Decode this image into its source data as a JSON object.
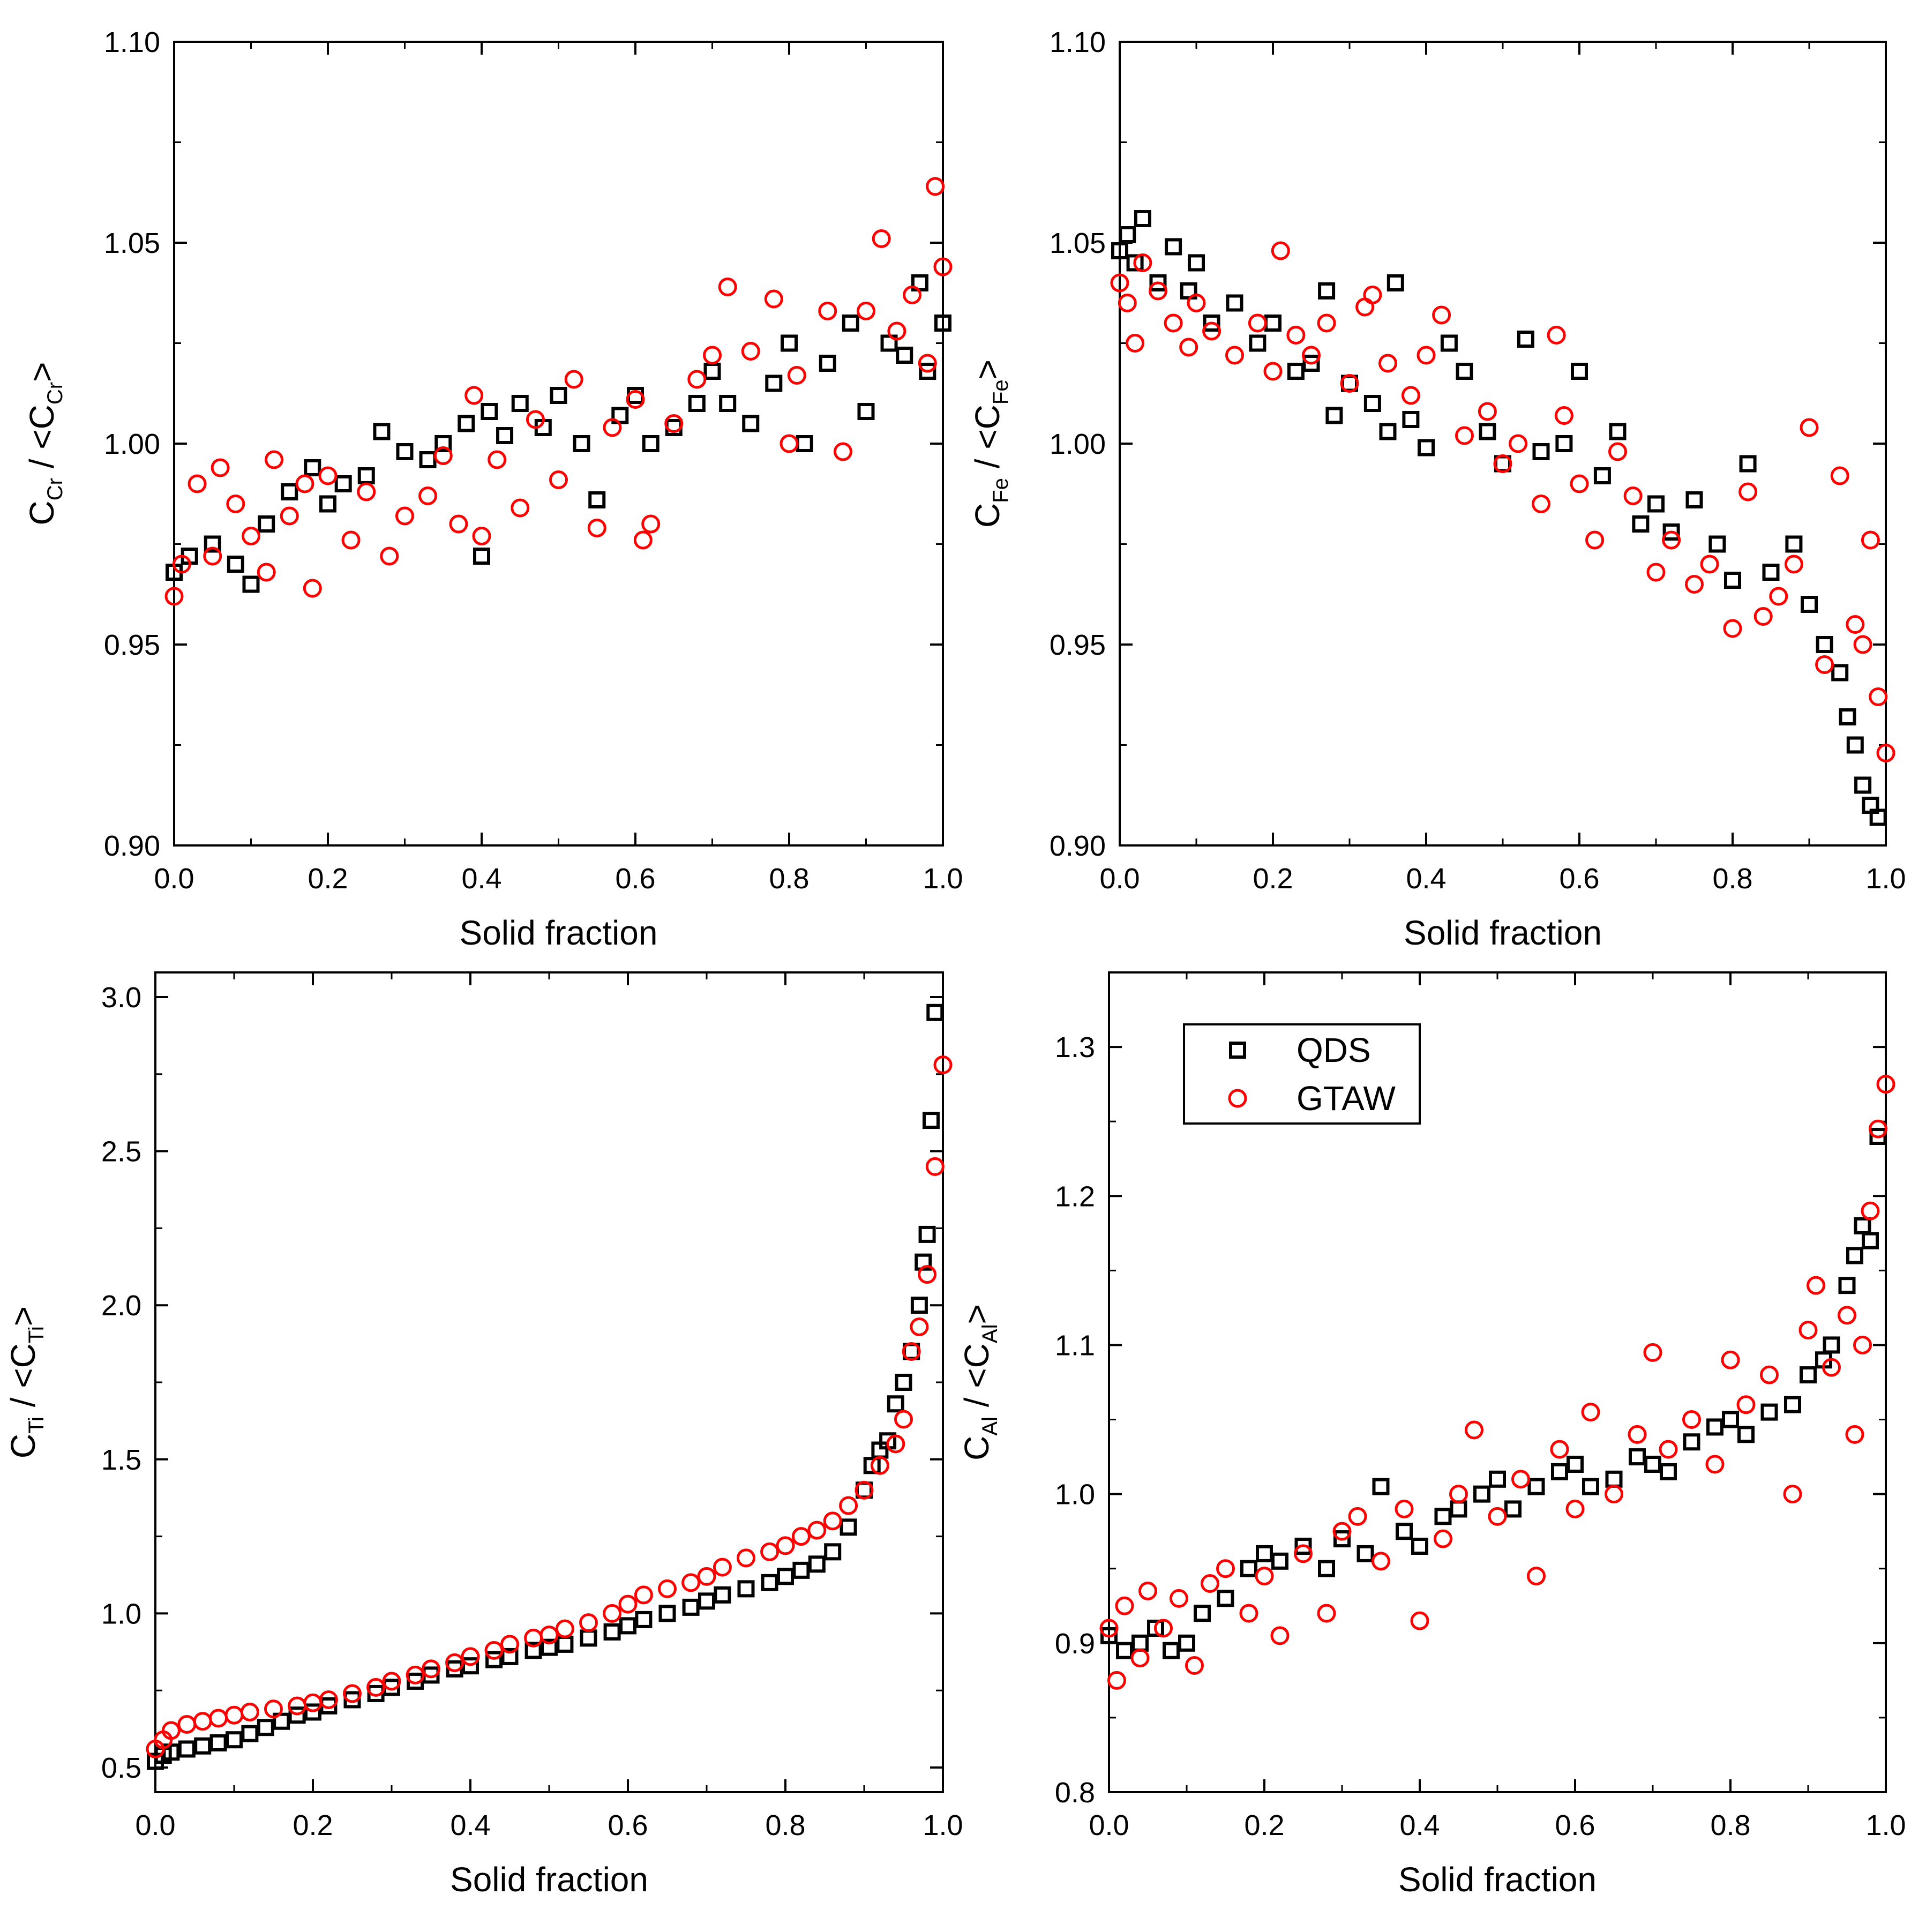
{
  "figure": {
    "panel_count": 4,
    "colors": {
      "qds": "#000000",
      "gtaw": "#ff0000",
      "axis": "#000000",
      "background": "#ffffff"
    }
  },
  "chart_data": [
    {
      "type": "scatter",
      "id": "cr",
      "xlabel": "Solid fraction",
      "ylabel": {
        "pre": "C",
        "sub": "Cr",
        "mid": " / <C",
        "sub2": "Cr",
        "post": ">"
      },
      "xlim": [
        0.0,
        1.0
      ],
      "ylim": [
        0.9,
        1.1
      ],
      "xticks": [
        0.0,
        0.2,
        0.4,
        0.6,
        0.8,
        1.0
      ],
      "xtick_labels": [
        "0.0",
        "0.2",
        "0.4",
        "0.6",
        "0.8",
        "1.0"
      ],
      "yticks": [
        0.9,
        0.95,
        1.0,
        1.05,
        1.1
      ],
      "ytick_labels": [
        "0.90",
        "0.95",
        "1.00",
        "1.05",
        "1.10"
      ],
      "series": [
        {
          "name": "QDS",
          "marker": "square",
          "color": "#000000",
          "x": [
            0.0,
            0.02,
            0.05,
            0.08,
            0.1,
            0.12,
            0.15,
            0.18,
            0.2,
            0.22,
            0.25,
            0.27,
            0.3,
            0.33,
            0.35,
            0.38,
            0.4,
            0.41,
            0.43,
            0.45,
            0.48,
            0.5,
            0.53,
            0.55,
            0.58,
            0.6,
            0.62,
            0.65,
            0.68,
            0.7,
            0.72,
            0.75,
            0.78,
            0.8,
            0.82,
            0.85,
            0.88,
            0.9,
            0.93,
            0.95,
            0.97,
            0.98,
            1.0
          ],
          "y": [
            0.968,
            0.972,
            0.975,
            0.97,
            0.965,
            0.98,
            0.988,
            0.994,
            0.985,
            0.99,
            0.992,
            1.003,
            0.998,
            0.996,
            1.0,
            1.005,
            0.972,
            1.008,
            1.002,
            1.01,
            1.004,
            1.012,
            1.0,
            0.986,
            1.007,
            1.012,
            1.0,
            1.004,
            1.01,
            1.018,
            1.01,
            1.005,
            1.015,
            1.025,
            1.0,
            1.02,
            1.03,
            1.008,
            1.025,
            1.022,
            1.04,
            1.018,
            1.03
          ]
        },
        {
          "name": "GTAW",
          "marker": "circle",
          "color": "#ff0000",
          "x": [
            0.0,
            0.01,
            0.03,
            0.05,
            0.06,
            0.08,
            0.1,
            0.12,
            0.13,
            0.15,
            0.17,
            0.18,
            0.2,
            0.23,
            0.25,
            0.28,
            0.3,
            0.33,
            0.35,
            0.37,
            0.39,
            0.4,
            0.42,
            0.45,
            0.47,
            0.5,
            0.52,
            0.55,
            0.57,
            0.6,
            0.61,
            0.62,
            0.65,
            0.68,
            0.7,
            0.72,
            0.75,
            0.78,
            0.8,
            0.81,
            0.85,
            0.87,
            0.9,
            0.92,
            0.94,
            0.96,
            0.98,
            0.99,
            1.0
          ],
          "y": [
            0.962,
            0.97,
            0.99,
            0.972,
            0.994,
            0.985,
            0.977,
            0.968,
            0.996,
            0.982,
            0.99,
            0.964,
            0.992,
            0.976,
            0.988,
            0.972,
            0.982,
            0.987,
            0.997,
            0.98,
            1.012,
            0.977,
            0.996,
            0.984,
            1.006,
            0.991,
            1.016,
            0.979,
            1.004,
            1.011,
            0.976,
            0.98,
            1.005,
            1.016,
            1.022,
            1.039,
            1.023,
            1.036,
            1.0,
            1.017,
            1.033,
            0.998,
            1.033,
            1.051,
            1.028,
            1.037,
            1.02,
            1.064,
            1.044
          ]
        }
      ]
    },
    {
      "type": "scatter",
      "id": "fe",
      "xlabel": "Solid fraction",
      "ylabel": {
        "pre": "C",
        "sub": "Fe",
        "mid": " / <C",
        "sub2": "Fe",
        "post": ">"
      },
      "xlim": [
        0.0,
        1.0
      ],
      "ylim": [
        0.9,
        1.1
      ],
      "xticks": [
        0.0,
        0.2,
        0.4,
        0.6,
        0.8,
        1.0
      ],
      "xtick_labels": [
        "0.0",
        "0.2",
        "0.4",
        "0.6",
        "0.8",
        "1.0"
      ],
      "yticks": [
        0.9,
        0.95,
        1.0,
        1.05,
        1.1
      ],
      "ytick_labels": [
        "0.90",
        "0.95",
        "1.00",
        "1.05",
        "1.10"
      ],
      "series": [
        {
          "name": "QDS",
          "marker": "square",
          "color": "#000000",
          "x": [
            0.0,
            0.01,
            0.02,
            0.03,
            0.05,
            0.07,
            0.09,
            0.1,
            0.12,
            0.15,
            0.18,
            0.2,
            0.23,
            0.25,
            0.27,
            0.28,
            0.3,
            0.33,
            0.35,
            0.36,
            0.38,
            0.4,
            0.43,
            0.45,
            0.48,
            0.5,
            0.53,
            0.55,
            0.58,
            0.6,
            0.63,
            0.65,
            0.68,
            0.7,
            0.72,
            0.75,
            0.78,
            0.8,
            0.82,
            0.85,
            0.88,
            0.9,
            0.92,
            0.94,
            0.95,
            0.96,
            0.97,
            0.98,
            0.99
          ],
          "y": [
            1.048,
            1.052,
            1.045,
            1.056,
            1.04,
            1.049,
            1.038,
            1.045,
            1.03,
            1.035,
            1.025,
            1.03,
            1.018,
            1.02,
            1.038,
            1.007,
            1.015,
            1.01,
            1.003,
            1.04,
            1.006,
            0.999,
            1.025,
            1.018,
            1.003,
            0.995,
            1.026,
            0.998,
            1.0,
            1.018,
            0.992,
            1.003,
            0.98,
            0.985,
            0.978,
            0.986,
            0.975,
            0.966,
            0.995,
            0.968,
            0.975,
            0.96,
            0.95,
            0.943,
            0.932,
            0.925,
            0.915,
            0.91,
            0.907
          ]
        },
        {
          "name": "GTAW",
          "marker": "circle",
          "color": "#ff0000",
          "x": [
            0.0,
            0.01,
            0.02,
            0.03,
            0.05,
            0.07,
            0.09,
            0.1,
            0.12,
            0.15,
            0.18,
            0.2,
            0.21,
            0.23,
            0.25,
            0.27,
            0.3,
            0.32,
            0.33,
            0.35,
            0.38,
            0.4,
            0.42,
            0.45,
            0.48,
            0.5,
            0.52,
            0.55,
            0.57,
            0.58,
            0.6,
            0.62,
            0.65,
            0.67,
            0.7,
            0.72,
            0.75,
            0.77,
            0.8,
            0.82,
            0.84,
            0.86,
            0.88,
            0.9,
            0.92,
            0.94,
            0.96,
            0.97,
            0.98,
            0.99,
            1.0
          ],
          "y": [
            1.04,
            1.035,
            1.025,
            1.045,
            1.038,
            1.03,
            1.024,
            1.035,
            1.028,
            1.022,
            1.03,
            1.018,
            1.048,
            1.027,
            1.022,
            1.03,
            1.015,
            1.034,
            1.037,
            1.02,
            1.012,
            1.022,
            1.032,
            1.002,
            1.008,
            0.995,
            1.0,
            0.985,
            1.027,
            1.007,
            0.99,
            0.976,
            0.998,
            0.987,
            0.968,
            0.976,
            0.965,
            0.97,
            0.954,
            0.988,
            0.957,
            0.962,
            0.97,
            1.004,
            0.945,
            0.992,
            0.955,
            0.95,
            0.976,
            0.937,
            0.923
          ]
        }
      ]
    },
    {
      "type": "scatter",
      "id": "ti",
      "xlabel": "Solid fraction",
      "ylabel": {
        "pre": "C",
        "sub": "Ti",
        "mid": " / <C",
        "sub2": "Ti",
        "post": ">"
      },
      "xlim": [
        0.0,
        1.0
      ],
      "ylim": [
        0.42,
        3.08
      ],
      "xticks": [
        0.0,
        0.2,
        0.4,
        0.6,
        0.8,
        1.0
      ],
      "xtick_labels": [
        "0.0",
        "0.2",
        "0.4",
        "0.6",
        "0.8",
        "1.0"
      ],
      "yticks": [
        0.5,
        1.0,
        1.5,
        2.0,
        2.5,
        3.0
      ],
      "ytick_labels": [
        "0.5",
        "1.0",
        "1.5",
        "2.0",
        "2.5",
        "3.0"
      ],
      "series": [
        {
          "name": "QDS",
          "marker": "square",
          "color": "#000000",
          "x": [
            0.0,
            0.01,
            0.02,
            0.04,
            0.06,
            0.08,
            0.1,
            0.12,
            0.14,
            0.16,
            0.18,
            0.2,
            0.22,
            0.25,
            0.28,
            0.3,
            0.33,
            0.35,
            0.38,
            0.4,
            0.43,
            0.45,
            0.48,
            0.5,
            0.52,
            0.55,
            0.58,
            0.6,
            0.62,
            0.65,
            0.68,
            0.7,
            0.72,
            0.75,
            0.78,
            0.8,
            0.82,
            0.84,
            0.86,
            0.88,
            0.9,
            0.91,
            0.92,
            0.93,
            0.94,
            0.95,
            0.96,
            0.97,
            0.975,
            0.98,
            0.985,
            0.99
          ],
          "y": [
            0.52,
            0.54,
            0.55,
            0.56,
            0.57,
            0.58,
            0.59,
            0.61,
            0.63,
            0.65,
            0.67,
            0.68,
            0.7,
            0.72,
            0.74,
            0.76,
            0.78,
            0.8,
            0.82,
            0.83,
            0.85,
            0.86,
            0.88,
            0.89,
            0.9,
            0.92,
            0.94,
            0.96,
            0.98,
            1.0,
            1.02,
            1.04,
            1.06,
            1.08,
            1.1,
            1.12,
            1.14,
            1.16,
            1.2,
            1.28,
            1.4,
            1.48,
            1.53,
            1.56,
            1.68,
            1.75,
            1.85,
            2.0,
            2.14,
            2.23,
            2.6,
            2.95
          ]
        },
        {
          "name": "GTAW",
          "marker": "circle",
          "color": "#ff0000",
          "x": [
            0.0,
            0.01,
            0.02,
            0.04,
            0.06,
            0.08,
            0.1,
            0.12,
            0.15,
            0.18,
            0.2,
            0.22,
            0.25,
            0.28,
            0.3,
            0.33,
            0.35,
            0.38,
            0.4,
            0.43,
            0.45,
            0.48,
            0.5,
            0.52,
            0.55,
            0.58,
            0.6,
            0.62,
            0.65,
            0.68,
            0.7,
            0.72,
            0.75,
            0.78,
            0.8,
            0.82,
            0.84,
            0.86,
            0.88,
            0.9,
            0.92,
            0.94,
            0.95,
            0.96,
            0.97,
            0.98,
            0.99,
            1.0
          ],
          "y": [
            0.56,
            0.59,
            0.62,
            0.64,
            0.65,
            0.66,
            0.67,
            0.68,
            0.69,
            0.7,
            0.71,
            0.72,
            0.74,
            0.76,
            0.78,
            0.8,
            0.82,
            0.84,
            0.86,
            0.88,
            0.9,
            0.92,
            0.93,
            0.95,
            0.97,
            1.0,
            1.03,
            1.06,
            1.08,
            1.1,
            1.12,
            1.15,
            1.18,
            1.2,
            1.22,
            1.25,
            1.27,
            1.3,
            1.35,
            1.4,
            1.48,
            1.55,
            1.63,
            1.85,
            1.93,
            2.1,
            2.45,
            2.78
          ]
        }
      ]
    },
    {
      "type": "scatter",
      "id": "al",
      "xlabel": "Solid fraction",
      "ylabel": {
        "pre": "C",
        "sub": "Al",
        "mid": " / <C",
        "sub2": "Al",
        "post": ">"
      },
      "xlim": [
        0.0,
        1.0
      ],
      "ylim": [
        0.8,
        1.35
      ],
      "xticks": [
        0.0,
        0.2,
        0.4,
        0.6,
        0.8,
        1.0
      ],
      "xtick_labels": [
        "0.0",
        "0.2",
        "0.4",
        "0.6",
        "0.8",
        "1.0"
      ],
      "yticks": [
        0.8,
        0.9,
        1.0,
        1.1,
        1.2,
        1.3
      ],
      "ytick_labels": [
        "0.8",
        "0.9",
        "1.0",
        "1.1",
        "1.2",
        "1.3"
      ],
      "legend": {
        "position": "top-left",
        "entries": [
          "QDS",
          "GTAW"
        ]
      },
      "series": [
        {
          "name": "QDS",
          "marker": "square",
          "color": "#000000",
          "x": [
            0.0,
            0.02,
            0.04,
            0.06,
            0.08,
            0.1,
            0.12,
            0.15,
            0.18,
            0.2,
            0.22,
            0.25,
            0.28,
            0.3,
            0.33,
            0.35,
            0.38,
            0.4,
            0.43,
            0.45,
            0.48,
            0.5,
            0.52,
            0.55,
            0.58,
            0.6,
            0.62,
            0.65,
            0.68,
            0.7,
            0.72,
            0.75,
            0.78,
            0.8,
            0.82,
            0.85,
            0.88,
            0.9,
            0.92,
            0.93,
            0.95,
            0.96,
            0.97,
            0.98,
            0.99
          ],
          "y": [
            0.905,
            0.895,
            0.9,
            0.91,
            0.895,
            0.9,
            0.92,
            0.93,
            0.95,
            0.96,
            0.955,
            0.965,
            0.95,
            0.97,
            0.96,
            1.005,
            0.975,
            0.965,
            0.985,
            0.99,
            1.0,
            1.01,
            0.99,
            1.005,
            1.015,
            1.02,
            1.005,
            1.01,
            1.025,
            1.02,
            1.015,
            1.035,
            1.045,
            1.05,
            1.04,
            1.055,
            1.06,
            1.08,
            1.09,
            1.1,
            1.14,
            1.16,
            1.18,
            1.17,
            1.24
          ]
        },
        {
          "name": "GTAW",
          "marker": "circle",
          "color": "#ff0000",
          "x": [
            0.0,
            0.01,
            0.02,
            0.04,
            0.05,
            0.07,
            0.09,
            0.11,
            0.13,
            0.15,
            0.18,
            0.2,
            0.22,
            0.25,
            0.28,
            0.3,
            0.32,
            0.35,
            0.38,
            0.4,
            0.43,
            0.45,
            0.47,
            0.5,
            0.53,
            0.55,
            0.58,
            0.6,
            0.62,
            0.65,
            0.68,
            0.7,
            0.72,
            0.75,
            0.78,
            0.8,
            0.82,
            0.85,
            0.88,
            0.9,
            0.91,
            0.93,
            0.95,
            0.96,
            0.97,
            0.98,
            0.99,
            1.0
          ],
          "y": [
            0.91,
            0.875,
            0.925,
            0.89,
            0.935,
            0.91,
            0.93,
            0.885,
            0.94,
            0.95,
            0.92,
            0.945,
            0.905,
            0.96,
            0.92,
            0.975,
            0.985,
            0.955,
            0.99,
            0.915,
            0.97,
            1.0,
            1.043,
            0.985,
            1.01,
            0.945,
            1.03,
            0.99,
            1.055,
            1.0,
            1.04,
            1.095,
            1.03,
            1.05,
            1.02,
            1.09,
            1.06,
            1.08,
            1.0,
            1.11,
            1.14,
            1.085,
            1.12,
            1.04,
            1.1,
            1.19,
            1.245,
            1.275
          ]
        }
      ]
    }
  ]
}
